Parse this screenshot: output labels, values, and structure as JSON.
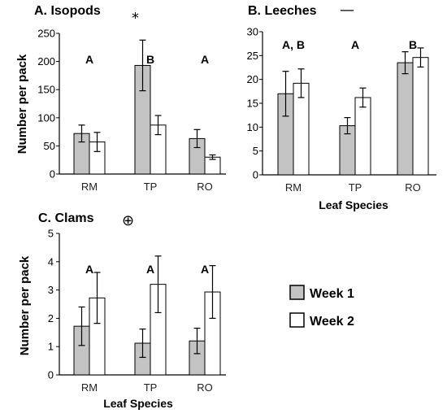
{
  "colors": {
    "week1": "#c3c3c3",
    "week2": "#ffffff",
    "stroke": "#000000"
  },
  "legend": {
    "entries": [
      {
        "label": "Week 1",
        "color": "#c3c3c3"
      },
      {
        "label": "Week 2",
        "color": "#ffffff"
      }
    ]
  },
  "chart_data": [
    {
      "type": "bar",
      "title": "A. Isopods",
      "symbol": "*",
      "categories": [
        "RM",
        "TP",
        "RO"
      ],
      "series": [
        {
          "name": "Week 1",
          "values": [
            72,
            193,
            63
          ],
          "errors": [
            15,
            45,
            16
          ]
        },
        {
          "name": "Week 2",
          "values": [
            57,
            87,
            30
          ],
          "errors": [
            17,
            17,
            4
          ]
        }
      ],
      "ylim": [
        0,
        250
      ],
      "yticks": [
        0,
        50,
        100,
        150,
        200,
        250
      ],
      "ylabel": "Number per pack",
      "xlabel": "",
      "letters": [
        "A",
        "B",
        "A"
      ]
    },
    {
      "type": "bar",
      "title": "B. Leeches",
      "symbol": "—",
      "categories": [
        "RM",
        "TP",
        "RO"
      ],
      "series": [
        {
          "name": "Week 1",
          "values": [
            17,
            10.3,
            23.5
          ],
          "errors": [
            4.7,
            1.7,
            2.3
          ]
        },
        {
          "name": "Week 2",
          "values": [
            19.2,
            16.2,
            24.6
          ],
          "errors": [
            3,
            2,
            2
          ]
        }
      ],
      "ylim": [
        0,
        30
      ],
      "yticks": [
        0,
        5,
        10,
        15,
        20,
        25,
        30
      ],
      "ylabel": "",
      "xlabel": "Leaf Species",
      "letters": [
        "A, B",
        "A",
        "B"
      ]
    },
    {
      "type": "bar",
      "title": "C. Clams",
      "symbol": "⊕",
      "categories": [
        "RM",
        "TP",
        "RO"
      ],
      "series": [
        {
          "name": "Week 1",
          "values": [
            1.72,
            1.12,
            1.2
          ],
          "errors": [
            0.68,
            0.5,
            0.45
          ]
        },
        {
          "name": "Week 2",
          "values": [
            2.72,
            3.2,
            2.93
          ],
          "errors": [
            0.9,
            1.0,
            0.93
          ]
        }
      ],
      "ylim": [
        0,
        5
      ],
      "yticks": [
        0,
        1,
        2,
        3,
        4,
        5
      ],
      "ylabel": "Number per pack",
      "xlabel": "Leaf Species",
      "letters": [
        "A",
        "A",
        "A"
      ]
    }
  ]
}
